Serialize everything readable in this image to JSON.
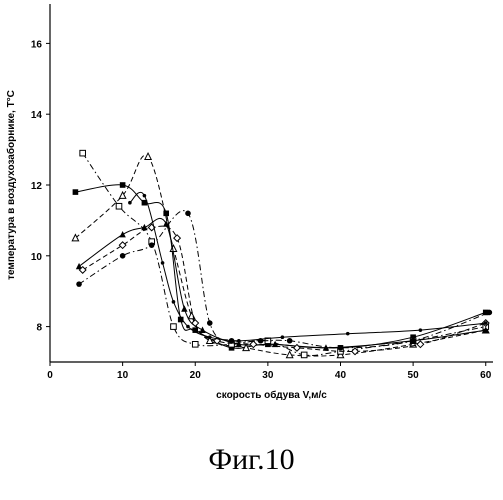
{
  "chart_data": {
    "type": "line",
    "title": "",
    "xlabel": "скорость обдува V,м/с",
    "ylabel": "температура в воздухозаборнике, T°C",
    "xlim": [
      0,
      61
    ],
    "ylim": [
      7,
      17
    ],
    "x_ticks": [
      "0",
      "10",
      "20",
      "30",
      "40",
      "50",
      "60"
    ],
    "y_ticks": [
      "8",
      "10",
      "12",
      "14",
      "16"
    ],
    "grid": false,
    "legend": "none",
    "line_color": "#000000",
    "series": [
      {
        "marker": "square-filled",
        "dash": "solid",
        "points": [
          [
            3.5,
            11.8
          ],
          [
            10,
            12
          ],
          [
            13,
            11.5
          ],
          [
            16,
            11.2
          ],
          [
            18,
            8.2
          ],
          [
            20,
            7.9
          ],
          [
            25,
            7.4
          ],
          [
            30,
            7.5
          ],
          [
            40,
            7.4
          ],
          [
            50,
            7.7
          ],
          [
            60,
            8.4
          ]
        ]
      },
      {
        "marker": "triangle-open",
        "dash": "dash",
        "points": [
          [
            3.5,
            10.5
          ],
          [
            10,
            11.7
          ],
          [
            13.5,
            12.8
          ],
          [
            17,
            10.2
          ],
          [
            19.5,
            8.3
          ],
          [
            22,
            7.6
          ],
          [
            27,
            7.4
          ],
          [
            33,
            7.2
          ],
          [
            40,
            7.2
          ],
          [
            50,
            7.5
          ],
          [
            60,
            7.9
          ]
        ]
      },
      {
        "marker": "square-open",
        "dash": "dashdot",
        "points": [
          [
            4.5,
            12.9
          ],
          [
            9.5,
            11.4
          ],
          [
            14,
            10.4
          ],
          [
            17,
            8
          ],
          [
            20,
            7.5
          ],
          [
            25,
            7.5
          ],
          [
            30,
            7.6
          ],
          [
            35,
            7.2
          ],
          [
            40,
            7.3
          ],
          [
            50,
            7.6
          ],
          [
            60,
            8
          ]
        ]
      },
      {
        "marker": "triangle-filled",
        "dash": "solid",
        "points": [
          [
            4,
            9.7
          ],
          [
            10,
            10.6
          ],
          [
            13,
            10.8
          ],
          [
            16,
            10.9
          ],
          [
            18.5,
            8.5
          ],
          [
            21,
            7.9
          ],
          [
            26,
            7.5
          ],
          [
            31,
            7.5
          ],
          [
            38,
            7.4
          ],
          [
            50,
            7.6
          ],
          [
            60,
            7.9
          ]
        ]
      },
      {
        "marker": "diamond-open",
        "dash": "dash",
        "points": [
          [
            4.5,
            9.6
          ],
          [
            10,
            10.3
          ],
          [
            14,
            10.8
          ],
          [
            17.5,
            10.5
          ],
          [
            20,
            8.1
          ],
          [
            23,
            7.6
          ],
          [
            28,
            7.5
          ],
          [
            34,
            7.4
          ],
          [
            42,
            7.3
          ],
          [
            51,
            7.5
          ],
          [
            60,
            8.1
          ]
        ]
      },
      {
        "marker": "circle-filled",
        "dash": "dashdot",
        "points": [
          [
            4,
            9.2
          ],
          [
            10,
            10
          ],
          [
            14,
            10.3
          ],
          [
            19,
            11.2
          ],
          [
            22,
            8.1
          ],
          [
            25,
            7.6
          ],
          [
            29,
            7.6
          ],
          [
            33,
            7.6
          ],
          [
            40,
            7.4
          ],
          [
            50,
            7.6
          ],
          [
            60.5,
            8.4
          ]
        ]
      },
      {
        "marker": "dot",
        "dash": "solid",
        "points": [
          [
            11,
            11.5
          ],
          [
            13,
            11.7
          ],
          [
            15.5,
            9.8
          ],
          [
            17,
            8.7
          ],
          [
            19,
            8
          ],
          [
            22,
            7.7
          ],
          [
            26,
            7.6
          ],
          [
            32,
            7.7
          ],
          [
            41,
            7.8
          ],
          [
            51,
            7.9
          ],
          [
            60,
            8.1
          ]
        ]
      }
    ]
  },
  "figure_caption": "Фиг.10"
}
